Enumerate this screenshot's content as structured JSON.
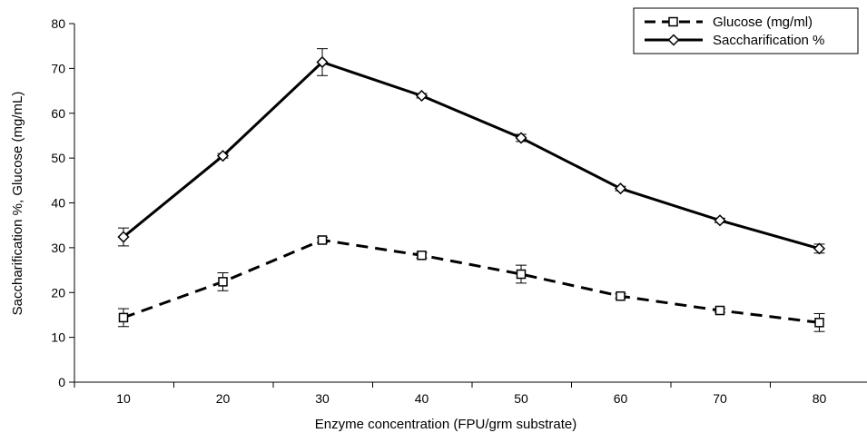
{
  "chart_data": {
    "type": "line",
    "x": [
      10,
      20,
      30,
      40,
      50,
      60,
      70,
      80
    ],
    "xlabel": "Enzyme concentration (FPU/grm substrate)",
    "ylabel": "Saccharification %, Glucose (mg/mL)",
    "ylim": [
      0,
      80
    ],
    "yticks": [
      0,
      10,
      20,
      30,
      40,
      50,
      60,
      70,
      80
    ],
    "xticks": [
      10,
      20,
      30,
      40,
      50,
      60,
      70,
      80
    ],
    "grid": false,
    "legend_position": "top-right",
    "series": [
      {
        "name": "Glucose (mg/ml)",
        "line_style": "dashed",
        "marker": "square",
        "values": [
          14.4,
          22.4,
          31.7,
          28.3,
          24.1,
          19.2,
          16.0,
          13.3
        ],
        "error": [
          2.0,
          2.0,
          0.6,
          0.6,
          2.0,
          0.5,
          0.4,
          2.0
        ]
      },
      {
        "name": "Saccharification %",
        "line_style": "solid",
        "marker": "diamond",
        "values": [
          32.4,
          50.5,
          71.4,
          63.9,
          54.5,
          43.2,
          36.1,
          29.8
        ],
        "error": [
          2.0,
          0.5,
          3.0,
          0.5,
          0.8,
          0.5,
          0.5,
          1.0
        ]
      }
    ],
    "colors": {
      "line": "#000000",
      "marker_fill": "#ffffff"
    }
  }
}
